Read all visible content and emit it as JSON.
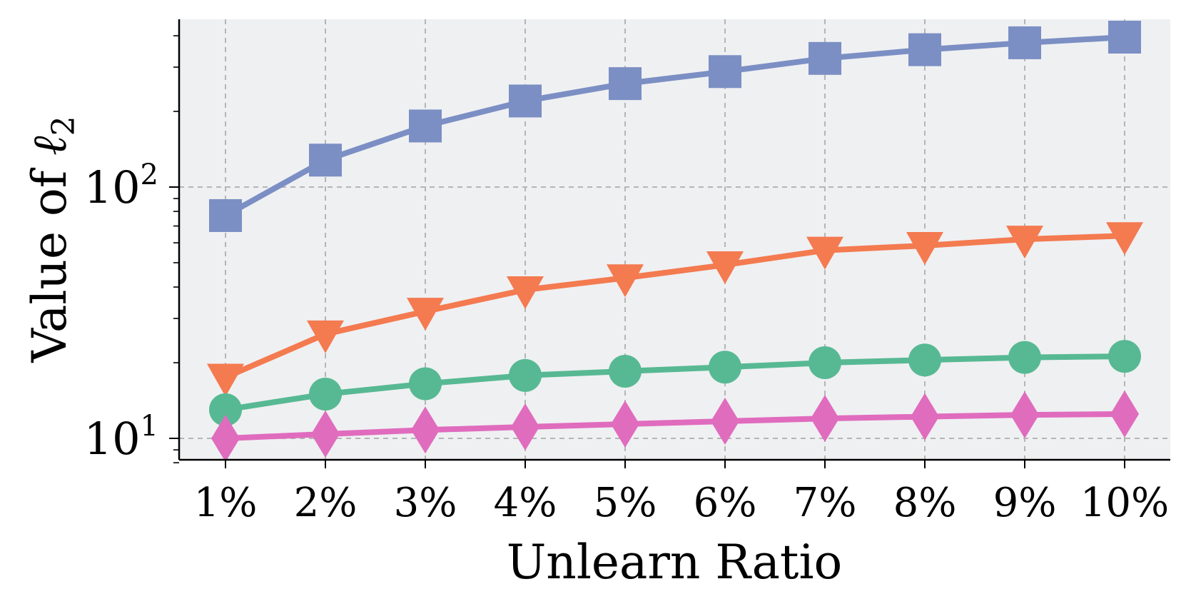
{
  "chart_data": {
    "type": "line",
    "title": "",
    "xlabel": "Unlearn Ratio",
    "ylabel_prefix": "Value of ",
    "ylabel_symbol": "ℓ",
    "ylabel_subscript": "2",
    "yscale": "log",
    "ylim": [
      8,
      450
    ],
    "grid": true,
    "legend": "none",
    "categories": [
      "1%",
      "2%",
      "3%",
      "4%",
      "5%",
      "6%",
      "7%",
      "8%",
      "9%",
      "10%"
    ],
    "y_ticks": [
      {
        "value": 10,
        "base": "10",
        "exp": "1"
      },
      {
        "value": 100,
        "base": "10",
        "exp": "2"
      }
    ],
    "series": [
      {
        "color": "#7b8fc4",
        "marker": "square",
        "values": [
          77,
          128,
          175,
          220,
          258,
          288,
          325,
          352,
          375,
          395
        ]
      },
      {
        "color": "#f47a50",
        "marker": "triangle-down",
        "values": [
          17.5,
          26,
          32,
          39,
          43.5,
          49,
          56,
          58.5,
          62,
          64
        ]
      },
      {
        "color": "#57b993",
        "marker": "circle",
        "values": [
          13,
          15,
          16.5,
          17.8,
          18.5,
          19.2,
          20,
          20.5,
          21,
          21.2
        ]
      },
      {
        "color": "#e06cbe",
        "marker": "diamond",
        "values": [
          10,
          10.4,
          10.8,
          11.1,
          11.4,
          11.7,
          12,
          12.2,
          12.4,
          12.5
        ]
      }
    ]
  }
}
